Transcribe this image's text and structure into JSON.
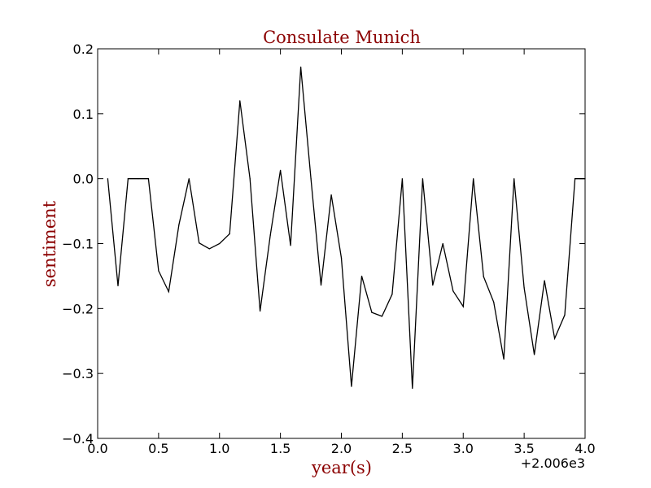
{
  "chart_data": {
    "type": "line",
    "title": "Consulate Munich",
    "xlabel": "year(s)",
    "ylabel": "sentiment",
    "x_offset_label": "+2.006e3",
    "xlim": [
      0.0,
      4.0
    ],
    "ylim": [
      -0.4,
      0.2
    ],
    "x_ticks": [
      "0.0",
      "0.5",
      "1.0",
      "1.5",
      "2.0",
      "2.5",
      "3.0",
      "3.5",
      "4.0"
    ],
    "y_ticks": [
      "0.2",
      "0.1",
      "0.0",
      "−0.1",
      "−0.2",
      "−0.3",
      "−0.4"
    ],
    "x_tick_values": [
      0.0,
      0.5,
      1.0,
      1.5,
      2.0,
      2.5,
      3.0,
      3.5,
      4.0
    ],
    "y_tick_values": [
      0.2,
      0.1,
      0.0,
      -0.1,
      -0.2,
      -0.3,
      -0.4
    ],
    "grid": false,
    "colors": {
      "title": "#8b0000",
      "labels": "#8b0000",
      "line": "#000000"
    },
    "series": [
      {
        "x": [
          0.083,
          0.167,
          0.25,
          0.333,
          0.417,
          0.5,
          0.583,
          0.667,
          0.75,
          0.833,
          0.917,
          1.0,
          1.083,
          1.167,
          1.25,
          1.333,
          1.417,
          1.5,
          1.583,
          1.667,
          1.75,
          1.833,
          1.917,
          2.0,
          2.083,
          2.167,
          2.25,
          2.333,
          2.417,
          2.5,
          2.583,
          2.667,
          2.75,
          2.833,
          2.917,
          3.0,
          3.083,
          3.167,
          3.25,
          3.333,
          3.417,
          3.5,
          3.583,
          3.667,
          3.75,
          3.833,
          3.917,
          4.0
        ],
        "values": [
          0.0,
          -0.165,
          0.0,
          0.0,
          0.0,
          -0.142,
          -0.174,
          -0.071,
          0.0,
          -0.099,
          -0.108,
          -0.1,
          -0.085,
          0.12,
          0.0,
          -0.204,
          -0.087,
          0.013,
          -0.103,
          0.172,
          0.0,
          -0.164,
          -0.025,
          -0.122,
          -0.32,
          -0.15,
          -0.206,
          -0.212,
          -0.178,
          0.0,
          -0.323,
          0.0,
          -0.164,
          -0.1,
          -0.173,
          -0.197,
          0.0,
          -0.151,
          -0.19,
          -0.278,
          0.0,
          -0.168,
          -0.271,
          -0.157,
          -0.246,
          -0.21,
          0.0,
          0.0
        ]
      }
    ]
  }
}
